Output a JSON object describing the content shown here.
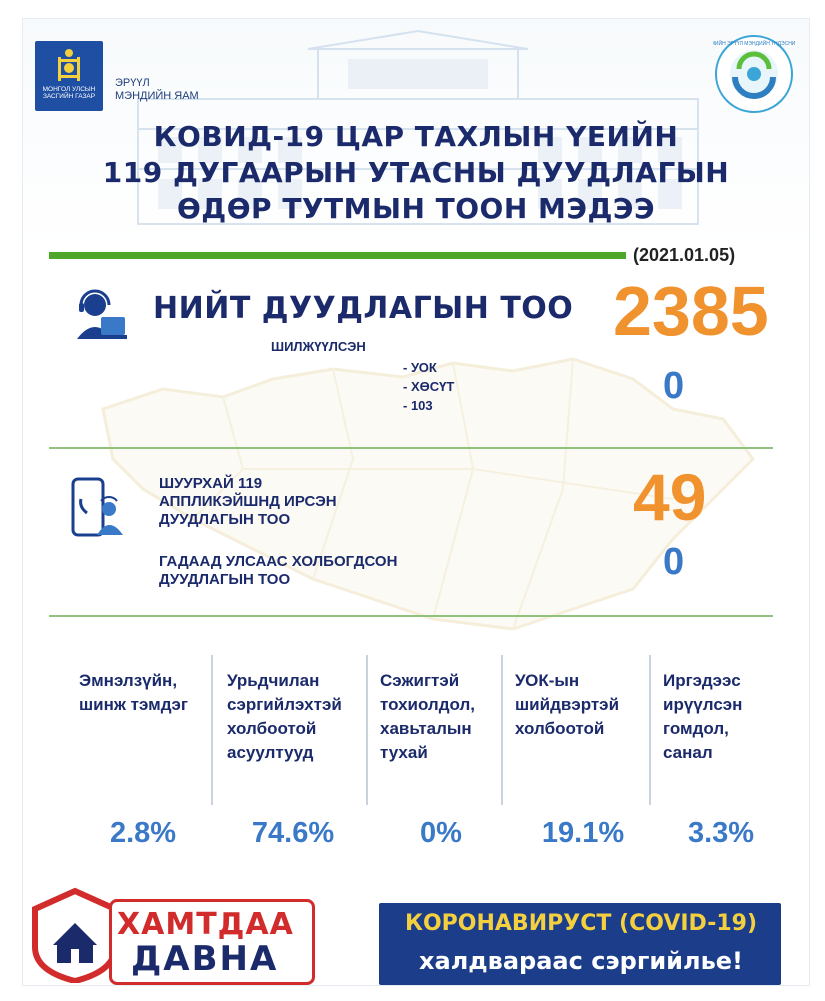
{
  "header": {
    "gov_logo_text": "МОНГОЛ УЛСЫН ЗАСГИЙН ГАЗАР",
    "ministry_line1": "ЭРҮҮЛ",
    "ministry_line2": "МЭНДИЙН ЯАМ",
    "center_logo_text": "НИЙГМИЙН ЭРҮҮЛ МЭНДИЙН ҮНДЭСНИЙ ТӨВ",
    "title_line1": "КОВИД-19 ЦАР ТАХЛЫН ҮЕИЙН",
    "title_line2": "119 ДУГААРЫН УТАСНЫ ДУУДЛАГЫН",
    "title_line3": "ӨДӨР ТУТМЫН  ТООН МЭДЭЭ",
    "date": "(2021.01.05)"
  },
  "total": {
    "label": "НИЙТ ДУУДЛАГЫН ТОО",
    "value": "2385",
    "transferred_label": "ШИЛЖҮҮЛСЭН",
    "transferred_items": [
      "- УОК",
      "- ХӨСҮТ",
      "- 103"
    ],
    "transferred_value": "0"
  },
  "app": {
    "line1": "ШУУРХАЙ 119",
    "line2": "АППЛИКЭЙШНД ИРСЭН",
    "line3": "ДУУДЛАГЫН ТОО",
    "value": "49"
  },
  "abroad": {
    "line1": "ГАДААД УЛСААС ХОЛБОГДСОН",
    "line2": "ДУУДЛАГЫН ТОО",
    "value": "0"
  },
  "categories": [
    {
      "lines": [
        "Эмнэлзүйн,",
        "шинж тэмдэг"
      ],
      "percent": "2.8%"
    },
    {
      "lines": [
        "Урьдчилан",
        "сэргийлэхтэй",
        "холбоотой",
        "асуултууд"
      ],
      "percent": "74.6%"
    },
    {
      "lines": [
        "Сэжигтэй",
        "тохиолдол,",
        "хавьталын",
        "тухай"
      ],
      "percent": "0%"
    },
    {
      "lines": [
        "УОК-ын",
        "шийдвэртэй",
        "холбоотой"
      ],
      "percent": "19.1%"
    },
    {
      "lines": [
        "Иргэдээс",
        "ирүүлсэн",
        "гомдол,",
        "санал"
      ],
      "percent": "3.3%"
    }
  ],
  "footer": {
    "slogan_line1": "ХАМТДАА",
    "slogan_line2": "ДАВНА",
    "banner_line1": "КОРОНАВИРУСТ (COVID-19)",
    "banner_line2": "халдвараас сэргийлье!"
  },
  "colors": {
    "navy": "#1b2a6b",
    "orange": "#f0922e",
    "blue": "#3a78c8",
    "green": "#4ea72a",
    "red": "#d22b2b",
    "banner_bg": "#1c3d8a",
    "banner_yellow": "#f4d03f"
  }
}
